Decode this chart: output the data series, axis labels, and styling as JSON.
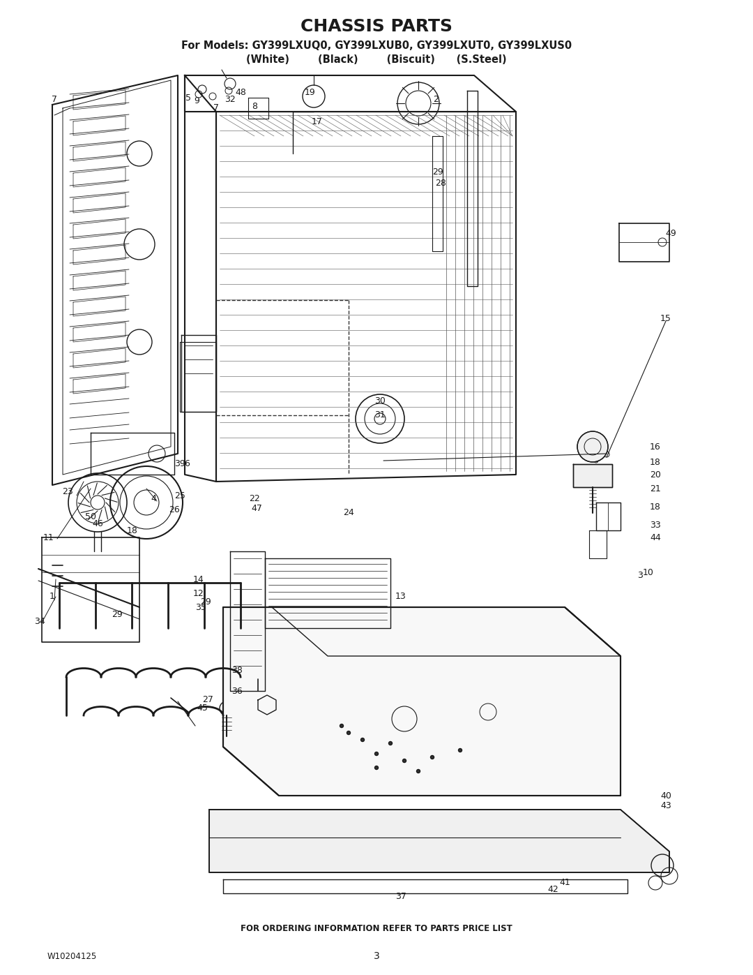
{
  "title": "CHASSIS PARTS",
  "subtitle1": "For Models: GY399LXUQ0, GY399LXUB0, GY399LXUT0, GY399LXUS0",
  "subtitle2": "(White)        (Black)        (Biscuit)      (S.Steel)",
  "footer_text": "FOR ORDERING INFORMATION REFER TO PARTS PRICE LIST",
  "part_number": "W10204125",
  "page_number": "3",
  "bg_color": "#ffffff",
  "fig_width": 10.8,
  "fig_height": 13.97,
  "dpi": 100,
  "title_fontsize": 18,
  "subtitle_fontsize": 10.5,
  "footer_fontsize": 8.5
}
